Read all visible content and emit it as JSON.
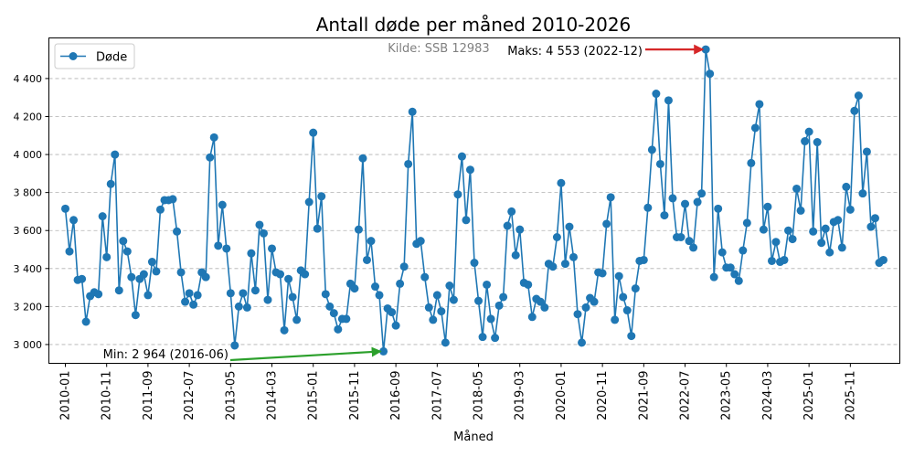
{
  "chart_data": {
    "type": "line",
    "title": "Antall døde per måned 2010-2026",
    "subtitle": "Kilde: SSB 12983",
    "xlabel": "Måned",
    "ylabel": "",
    "ylim": [
      2930,
      4580
    ],
    "yticks": [
      3000,
      3200,
      3400,
      3600,
      3800,
      4000,
      4200,
      4400
    ],
    "ytick_labels": [
      "3 000",
      "3 200",
      "3 400",
      "3 600",
      "3 800",
      "4 000",
      "4 200",
      "4 400"
    ],
    "xtick_labels": [
      "2010-01",
      "2010-11",
      "2011-09",
      "2012-07",
      "2013-05",
      "2014-03",
      "2015-01",
      "2015-11",
      "2016-09",
      "2017-07",
      "2018-05",
      "2019-03",
      "2020-01",
      "2020-11",
      "2021-09",
      "2022-07",
      "2023-05",
      "2024-03",
      "2025-01",
      "2025-11"
    ],
    "xtick_every": 10,
    "grid": "y-dashed",
    "legend_position": "top-left",
    "series": [
      {
        "name": "Døde",
        "color": "#1f77b4",
        "start": "2010-01",
        "values": [
          3715,
          3490,
          3655,
          3340,
          3345,
          3120,
          3255,
          3275,
          3265,
          3675,
          3460,
          3845,
          4000,
          3285,
          3545,
          3490,
          3355,
          3155,
          3345,
          3370,
          3260,
          3435,
          3385,
          3710,
          3760,
          3760,
          3765,
          3595,
          3380,
          3225,
          3270,
          3210,
          3260,
          3380,
          3355,
          3985,
          4090,
          3520,
          3735,
          3505,
          3270,
          2995,
          3200,
          3270,
          3195,
          3480,
          3285,
          3630,
          3585,
          3235,
          3505,
          3380,
          3370,
          3075,
          3345,
          3250,
          3130,
          3390,
          3370,
          3750,
          4115,
          3610,
          3780,
          3265,
          3200,
          3165,
          3080,
          3135,
          3135,
          3320,
          3295,
          3605,
          3980,
          3445,
          3545,
          3305,
          3260,
          2964,
          3190,
          3170,
          3100,
          3320,
          3410,
          3950,
          4225,
          3530,
          3545,
          3355,
          3195,
          3130,
          3260,
          3175,
          3010,
          3310,
          3235,
          3790,
          3990,
          3655,
          3920,
          3430,
          3230,
          3040,
          3315,
          3135,
          3035,
          3205,
          3250,
          3625,
          3700,
          3470,
          3605,
          3325,
          3315,
          3145,
          3240,
          3225,
          3195,
          3425,
          3410,
          3565,
          3850,
          3425,
          3620,
          3460,
          3160,
          3010,
          3195,
          3245,
          3225,
          3380,
          3375,
          3635,
          3775,
          3130,
          3360,
          3250,
          3180,
          3045,
          3295,
          3440,
          3445,
          3720,
          4025,
          4320,
          3950,
          3680,
          4285,
          3770,
          3565,
          3565,
          3740,
          3545,
          3510,
          3750,
          3795,
          4553,
          4425,
          3355,
          3715,
          3485,
          3405,
          3405,
          3370,
          3335,
          3495,
          3640,
          3955,
          4140,
          4265,
          3605,
          3725,
          3440,
          3540,
          3435,
          3445,
          3600,
          3555,
          3820,
          3705,
          4070,
          4120,
          3595,
          4065,
          3535,
          3610,
          3485,
          3645,
          3655,
          3510,
          3830,
          3710,
          4230,
          4310,
          3795,
          4015,
          3620,
          3665,
          3430,
          3445
        ]
      }
    ],
    "annotations": [
      {
        "id": "max",
        "text": "Maks: 4 553 (2022-12)",
        "target_month": "2022-12",
        "value": 4553,
        "arrow_color": "#d62728"
      },
      {
        "id": "min",
        "text": "Min: 2 964 (2016-06)",
        "target_month": "2016-06",
        "value": 2964,
        "arrow_color": "#2ca02c"
      }
    ]
  }
}
